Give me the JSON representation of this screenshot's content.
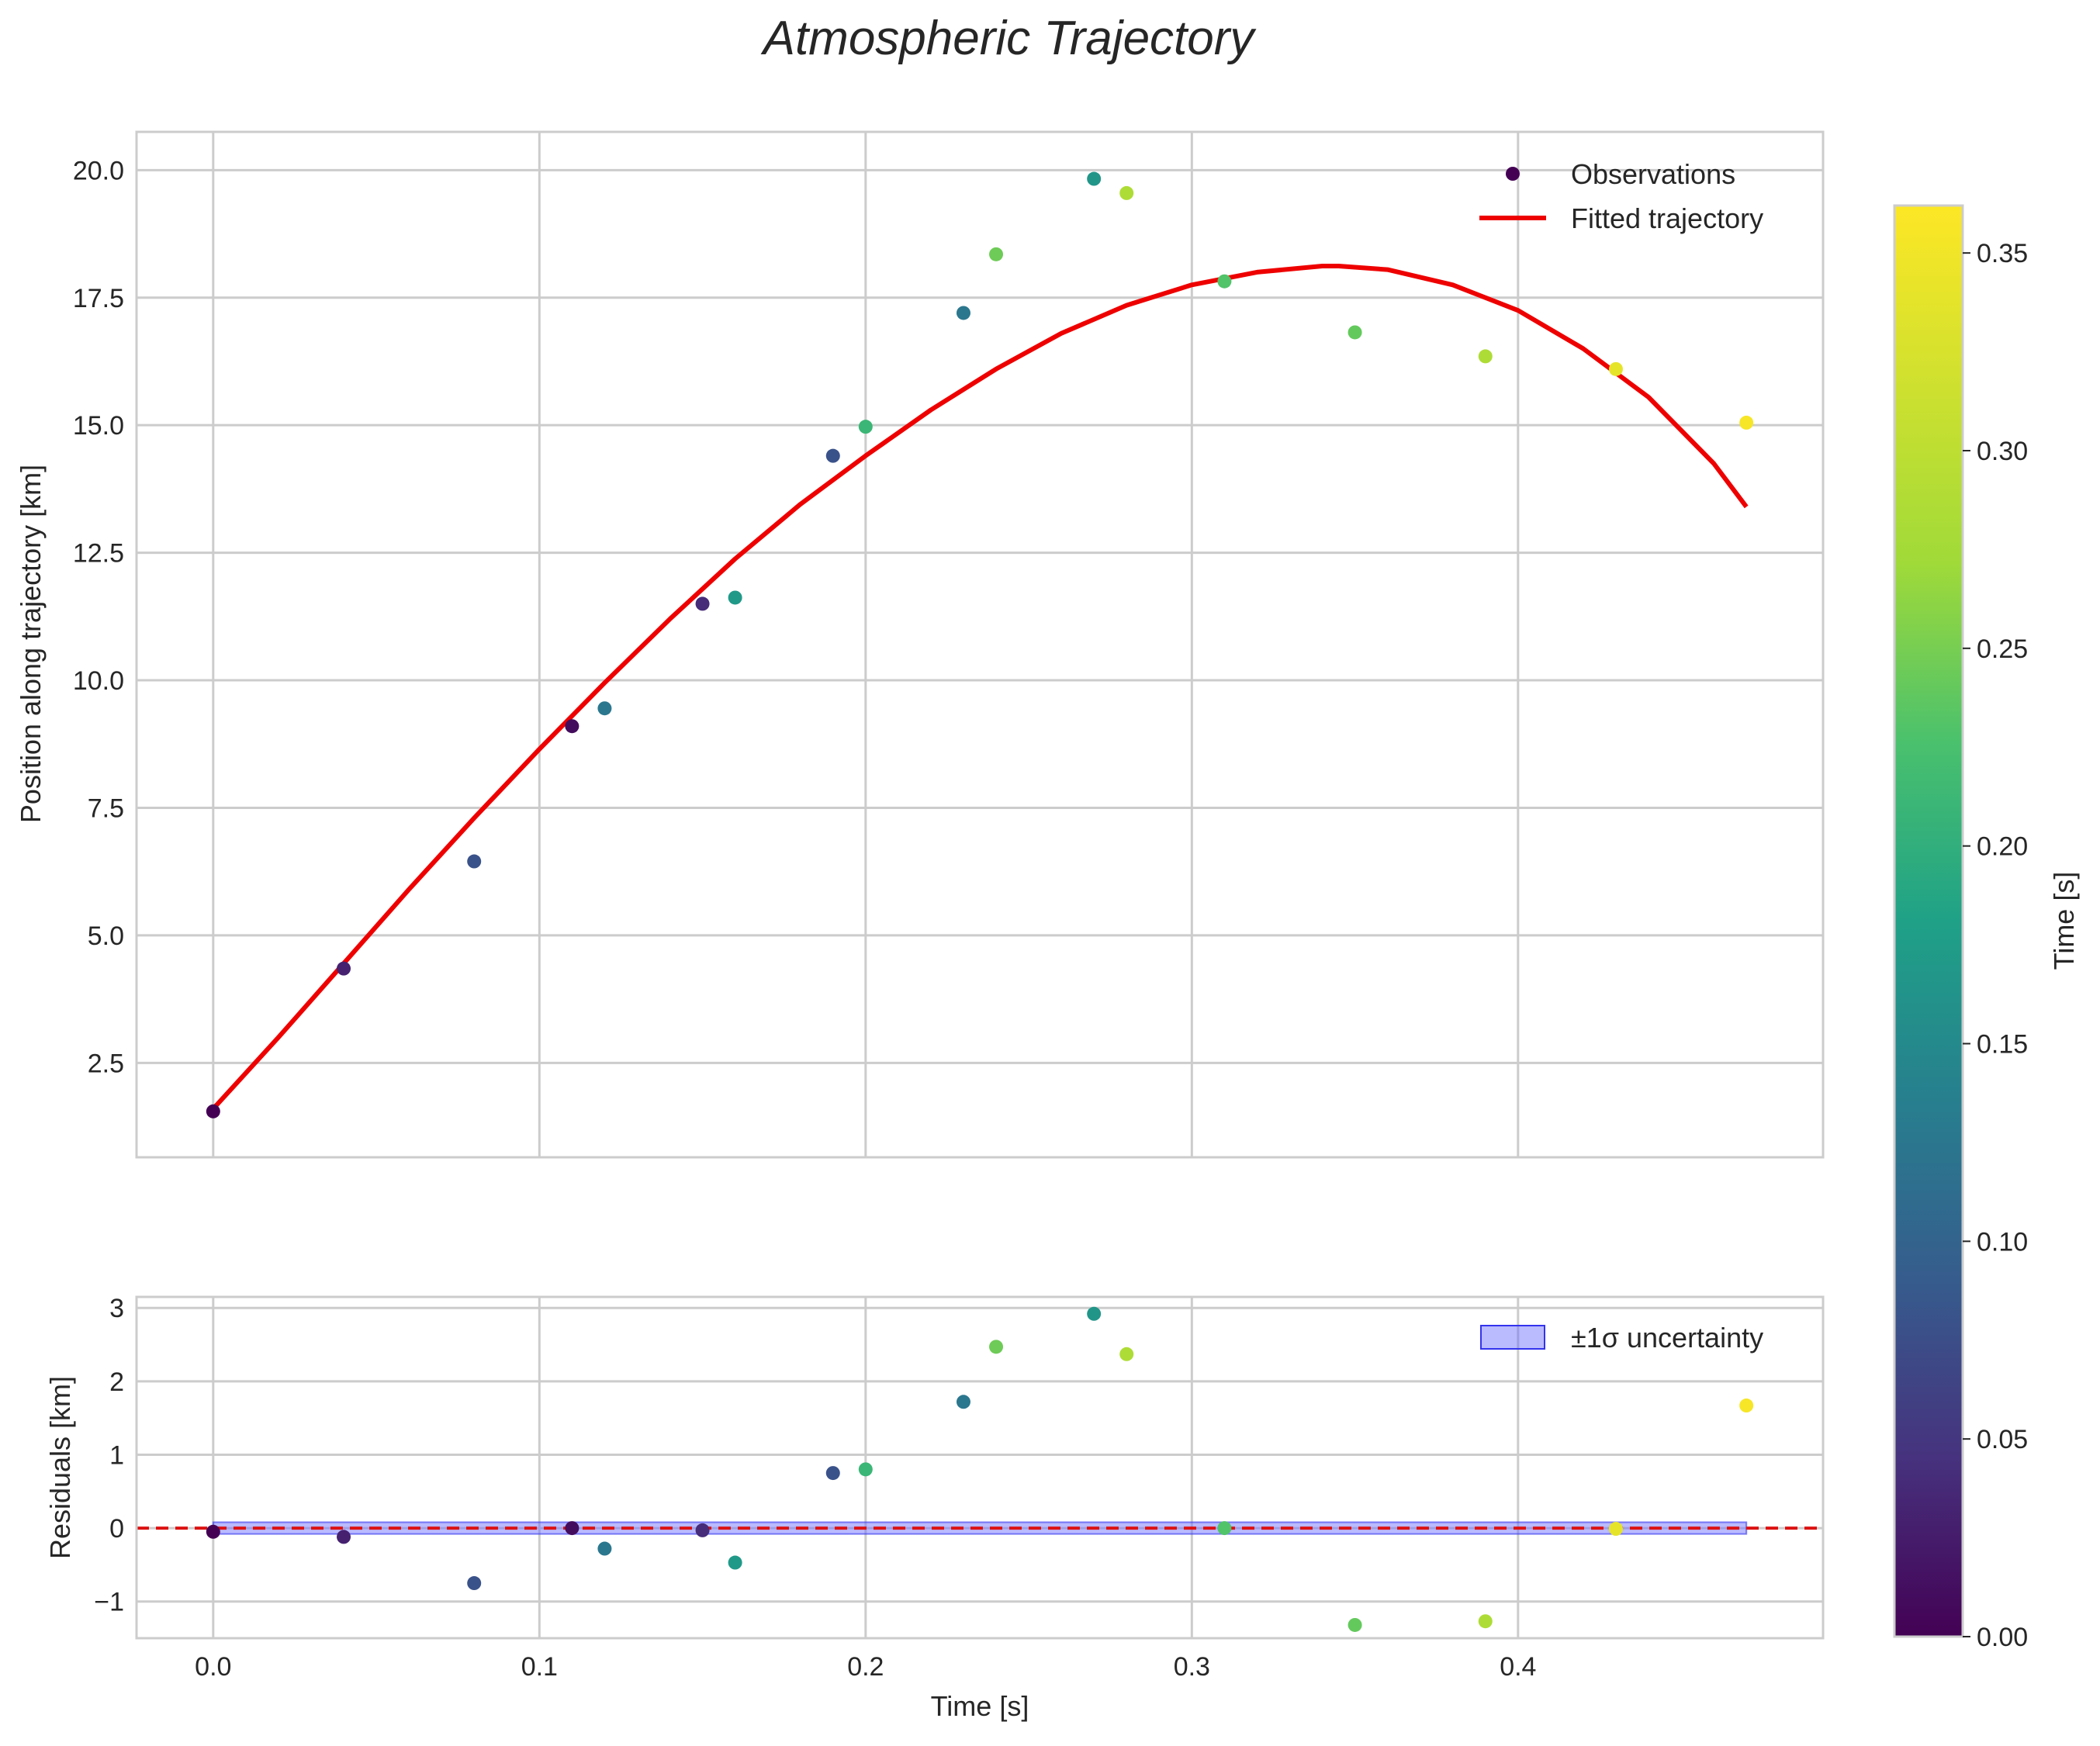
{
  "chart_data": {
    "type": "scatter",
    "title": "Atmospheric Trajectory",
    "colors": {
      "fit_line": "#ee0000",
      "band_fill": "#6666ff",
      "zero_line": "#dd1111",
      "grid": "#cccccc",
      "frame": "#cccccc"
    },
    "main": {
      "xlabel": "",
      "ylabel": "Position along trajectory [km]",
      "xlim": [
        -0.0235,
        0.4935
      ],
      "ylim": [
        0.65,
        20.75
      ],
      "yticks": [
        2.5,
        5.0,
        7.5,
        10.0,
        12.5,
        15.0,
        17.5,
        20.0
      ],
      "ytick_labels": [
        "2.5",
        "5.0",
        "7.5",
        "10.0",
        "12.5",
        "15.0",
        "17.5",
        "20.0"
      ],
      "legend": {
        "placement": "top-right",
        "observations_label": "Observations",
        "fit_label": "Fitted trajectory"
      },
      "observations": [
        {
          "t": 0.0,
          "pos": 1.55,
          "c": 0.0
        },
        {
          "t": 0.04,
          "pos": 4.35,
          "c": 0.03
        },
        {
          "t": 0.08,
          "pos": 6.45,
          "c": 0.08
        },
        {
          "t": 0.11,
          "pos": 9.1,
          "c": 0.01
        },
        {
          "t": 0.12,
          "pos": 9.45,
          "c": 0.125
        },
        {
          "t": 0.15,
          "pos": 11.5,
          "c": 0.04
        },
        {
          "t": 0.16,
          "pos": 11.62,
          "c": 0.17
        },
        {
          "t": 0.19,
          "pos": 14.4,
          "c": 0.08
        },
        {
          "t": 0.2,
          "pos": 14.97,
          "c": 0.21
        },
        {
          "t": 0.23,
          "pos": 17.2,
          "c": 0.125
        },
        {
          "t": 0.24,
          "pos": 18.35,
          "c": 0.245
        },
        {
          "t": 0.27,
          "pos": 19.83,
          "c": 0.165
        },
        {
          "t": 0.28,
          "pos": 19.55,
          "c": 0.285
        },
        {
          "t": 0.31,
          "pos": 17.82,
          "c": 0.23
        },
        {
          "t": 0.35,
          "pos": 16.82,
          "c": 0.24
        },
        {
          "t": 0.39,
          "pos": 16.35,
          "c": 0.285
        },
        {
          "t": 0.43,
          "pos": 16.1,
          "c": 0.34
        },
        {
          "t": 0.47,
          "pos": 15.05,
          "c": 0.355
        }
      ],
      "fit_curve": {
        "t": [
          0.0,
          0.02,
          0.04,
          0.06,
          0.08,
          0.1,
          0.12,
          0.14,
          0.16,
          0.18,
          0.2,
          0.22,
          0.24,
          0.26,
          0.28,
          0.3,
          0.32,
          0.34,
          0.345,
          0.36,
          0.38,
          0.4,
          0.42,
          0.44,
          0.46,
          0.47
        ],
        "pos": [
          1.6,
          3.0,
          4.45,
          5.9,
          7.3,
          8.65,
          9.95,
          11.2,
          12.38,
          13.45,
          14.4,
          15.3,
          16.1,
          16.8,
          17.35,
          17.75,
          18.0,
          18.12,
          18.12,
          18.05,
          17.75,
          17.25,
          16.5,
          15.55,
          14.25,
          13.4
        ]
      }
    },
    "residuals": {
      "xlabel": "Time [s]",
      "ylabel": "Residuals [km]",
      "xlim": [
        -0.0235,
        0.4935
      ],
      "ylim": [
        -1.5,
        3.15
      ],
      "xticks": [
        0.0,
        0.1,
        0.2,
        0.3,
        0.4
      ],
      "xtick_labels": [
        "0.0",
        "0.1",
        "0.2",
        "0.3",
        "0.4"
      ],
      "yticks": [
        -1,
        0,
        1,
        2,
        3
      ],
      "ytick_labels": [
        "−1",
        "0",
        "1",
        "2",
        "3"
      ],
      "legend": {
        "placement": "top-right",
        "band_label": "±1σ uncertainty"
      },
      "uncertainty_sigma": 0.08,
      "points": [
        {
          "t": 0.0,
          "r": -0.05,
          "c": 0.0
        },
        {
          "t": 0.04,
          "r": -0.12,
          "c": 0.03
        },
        {
          "t": 0.08,
          "r": -0.75,
          "c": 0.08
        },
        {
          "t": 0.11,
          "r": 0.0,
          "c": 0.01
        },
        {
          "t": 0.12,
          "r": -0.28,
          "c": 0.125
        },
        {
          "t": 0.15,
          "r": -0.03,
          "c": 0.04
        },
        {
          "t": 0.16,
          "r": -0.47,
          "c": 0.17
        },
        {
          "t": 0.19,
          "r": 0.75,
          "c": 0.08
        },
        {
          "t": 0.2,
          "r": 0.8,
          "c": 0.21
        },
        {
          "t": 0.23,
          "r": 1.72,
          "c": 0.125
        },
        {
          "t": 0.24,
          "r": 2.47,
          "c": 0.245
        },
        {
          "t": 0.27,
          "r": 2.92,
          "c": 0.165
        },
        {
          "t": 0.28,
          "r": 2.37,
          "c": 0.285
        },
        {
          "t": 0.31,
          "r": 0.0,
          "c": 0.23
        },
        {
          "t": 0.35,
          "r": -1.32,
          "c": 0.24
        },
        {
          "t": 0.39,
          "r": -1.27,
          "c": 0.285
        },
        {
          "t": 0.43,
          "r": -0.01,
          "c": 0.34
        },
        {
          "t": 0.47,
          "r": 1.67,
          "c": 0.355
        }
      ]
    },
    "colorbar": {
      "label": "Time [s]",
      "range": [
        0.0,
        0.362
      ],
      "ticks": [
        0.0,
        0.05,
        0.1,
        0.15,
        0.2,
        0.25,
        0.3,
        0.35
      ],
      "tick_labels": [
        "0.00",
        "0.05",
        "0.10",
        "0.15",
        "0.20",
        "0.25",
        "0.30",
        "0.35"
      ],
      "colormap": "viridis"
    }
  }
}
